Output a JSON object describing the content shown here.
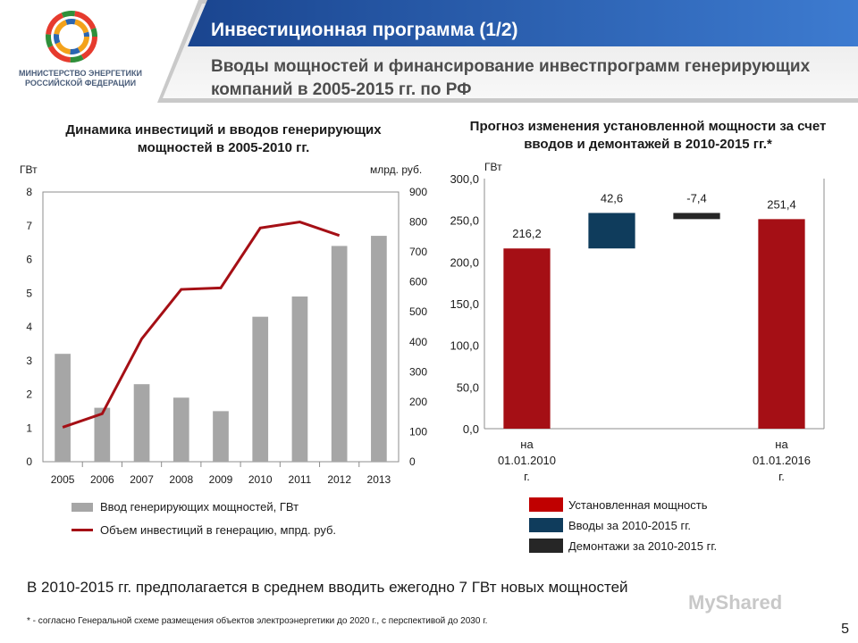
{
  "header": {
    "title": "Инвестиционная программа (1/2)",
    "subtitle": "Вводы мощностей и финансирование инвестпрограмм генерирующих компаний в 2005-2015 гг. по РФ",
    "ministry": "МИНИСТЕРСТВО ЭНЕРГЕТИКИ РОССИЙСКОЙ ФЕДЕРАЦИИ",
    "colors": {
      "band": "#1f4e9c",
      "accent": "#a50f15"
    }
  },
  "chart_data": [
    {
      "type": "bar",
      "title": "Динамика инвестиций и вводов генерирующих мощностей в 2005-2010 гг.",
      "ylabel": "ГВт",
      "y2label": "млрд. руб.",
      "categories": [
        "2005",
        "2006",
        "2007",
        "2008",
        "2009",
        "2010",
        "2011",
        "2012",
        "2013"
      ],
      "ylim": [
        0,
        8
      ],
      "y2lim": [
        0,
        900
      ],
      "yticks": [
        "0",
        "1",
        "2",
        "3",
        "4",
        "5",
        "6",
        "7",
        "8"
      ],
      "y2ticks": [
        "0",
        "100",
        "200",
        "300",
        "400",
        "500",
        "600",
        "700",
        "800",
        "900"
      ],
      "series": [
        {
          "name": "Ввод генерирующих мощностей, ГВт",
          "kind": "bar",
          "axis": "left",
          "color": "#a6a6a6",
          "values": [
            3.2,
            1.6,
            2.3,
            1.9,
            1.5,
            4.3,
            4.9,
            6.4,
            6.7
          ]
        },
        {
          "name": "Объем инвестиций в генерацию, мпрд. руб.",
          "kind": "line",
          "axis": "right",
          "color": "#a50f15",
          "values": [
            115,
            160,
            410,
            575,
            580,
            780,
            800,
            755,
            null
          ]
        }
      ],
      "grid": false,
      "legend": "bottom"
    },
    {
      "type": "bar",
      "subtype": "waterfall",
      "title": "Прогноз изменения установленной мощности за счет вводов и демонтажей в 2010-2015 гг.*",
      "ylabel": "ГВт",
      "ylim": [
        0,
        300
      ],
      "yticks": [
        "0,0",
        "50,0",
        "100,0",
        "150,0",
        "200,0",
        "250,0",
        "300,0"
      ],
      "categories": [
        "на 01.01.2010 г.",
        "",
        "",
        "на 01.01.2016 г."
      ],
      "bars": [
        {
          "label": "216,2",
          "start": 0,
          "end": 216.2,
          "color": "#a50f15"
        },
        {
          "label": "42,6",
          "start": 216.2,
          "end": 258.8,
          "color": "#0f3c5c"
        },
        {
          "label": "-7,4",
          "start": 251.4,
          "end": 258.8,
          "color": "#262626"
        },
        {
          "label": "251,4",
          "start": 0,
          "end": 251.4,
          "color": "#a50f15"
        }
      ],
      "legend_items": [
        {
          "label": "Установленная мощность",
          "color": "#c00000"
        },
        {
          "label": "Вводы за 2010-2015 гг.",
          "color": "#0f3c5c"
        },
        {
          "label": "Демонтажи за 2010-2015 гг.",
          "color": "#262626"
        }
      ]
    }
  ],
  "note": "В 2010-2015 гг. предполагается в среднем вводить ежегодно 7 ГВт новых мощностей",
  "footnote": "* - согласно Генеральной схеме размещения  объектов электроэнергетики до 2020 г., с перспективой до 2030 г.",
  "watermark": "MyShared",
  "page_number": "5"
}
